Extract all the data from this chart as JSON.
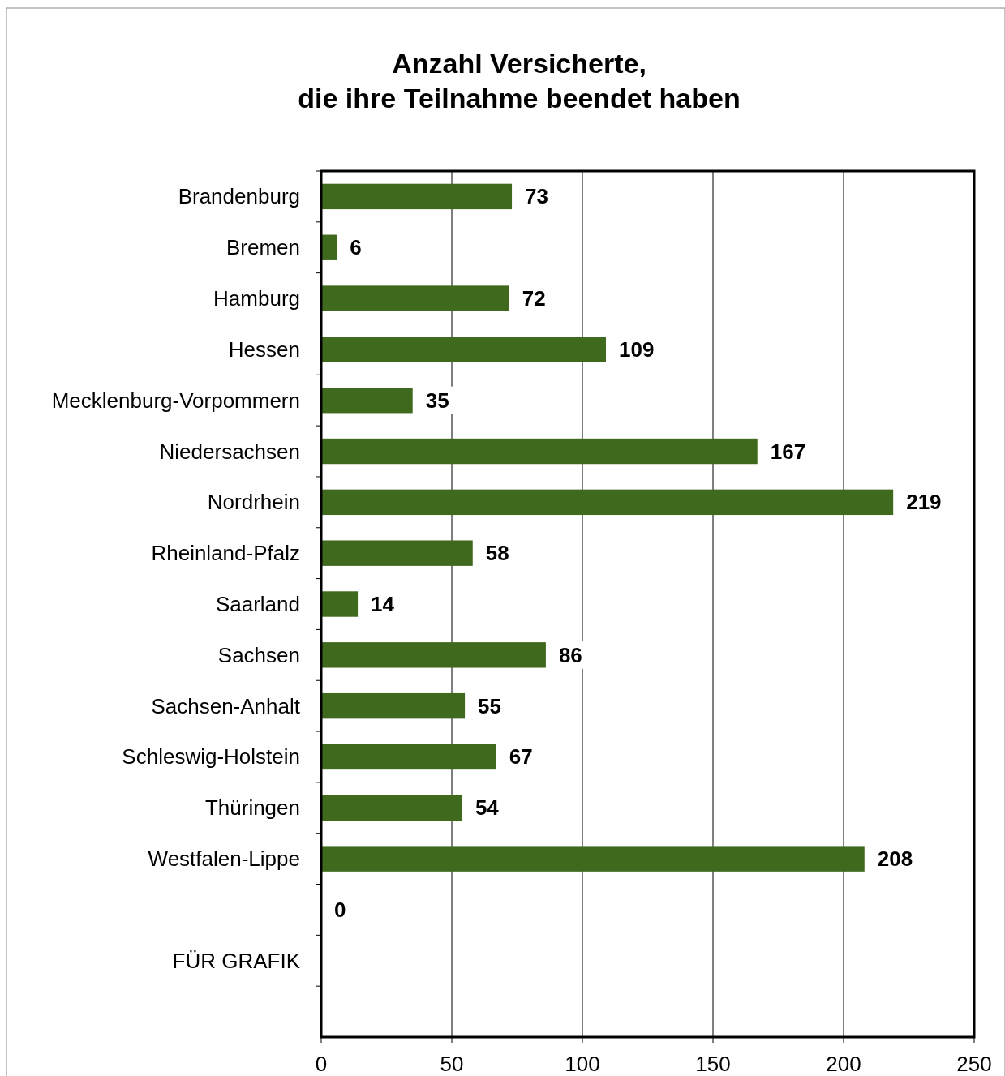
{
  "chart_data": {
    "type": "bar",
    "orientation": "horizontal",
    "title": "Anzahl Versicherte,\ndie ihre Teilnahme beendet haben",
    "categories": [
      "Brandenburg",
      "Bremen",
      "Hamburg",
      "Hessen",
      "Mecklenburg-Vorpommern",
      "Niedersachsen",
      "Nordrhein",
      "Rheinland-Pfalz",
      "Saarland",
      "Sachsen",
      "Sachsen-Anhalt",
      "Schleswig-Holstein",
      "Thüringen",
      "Westfalen-Lippe",
      null,
      "FÜR GRAFIK",
      null
    ],
    "values": [
      73,
      6,
      72,
      109,
      35,
      167,
      219,
      58,
      14,
      86,
      55,
      67,
      54,
      208,
      0,
      null,
      null
    ],
    "color": "#3f6a1e",
    "xlim": [
      0,
      250
    ],
    "xticks": [
      0,
      50,
      100,
      150,
      200,
      250
    ],
    "grid": "x",
    "data_labels": true
  }
}
